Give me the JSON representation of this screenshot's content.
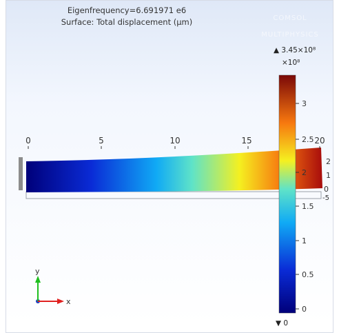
{
  "plot": {
    "title_line1": "Eigenfrequency=6.691971 e6",
    "title_line2": "Surface: Total displacement (μm)",
    "logo_text": "COMSOL MULTIPHYSICS"
  },
  "geometry_axis": {
    "ticks": [
      "0",
      "5",
      "10",
      "15",
      "20"
    ],
    "right_ticks": [
      "2",
      "1",
      "0",
      "-5"
    ]
  },
  "colorbar": {
    "max_label": "▲ 3.45×10⁸",
    "multiplier": "×10⁸",
    "min_label": "▼ 0",
    "ticks": [
      "3",
      "2.5",
      "2",
      "1.5",
      "1",
      "0.5",
      "0"
    ],
    "colormap": "rainbow"
  },
  "triad": {
    "y_label": "y",
    "x_label": "x",
    "y_color": "#1fbf1f",
    "x_color": "#e02020",
    "z_color": "#2040c0"
  }
}
